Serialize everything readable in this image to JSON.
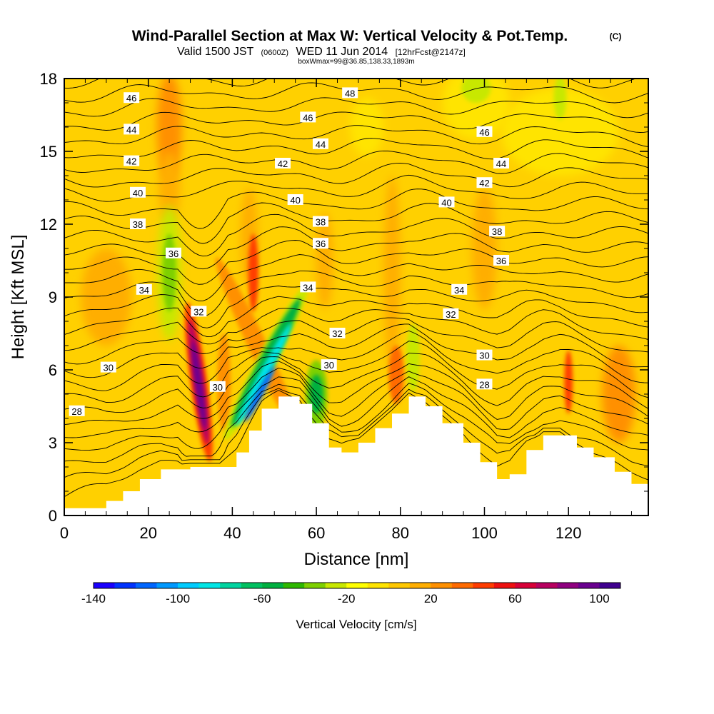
{
  "chart_data": {
    "type": "heatmap",
    "title": "Wind-Parallel Section at Max W: Vertical Velocity & Pot.Temp.",
    "title_mark": "(C)",
    "subtitle_parts": [
      "Valid 1500 JST",
      "(0600Z)",
      "WED 11 Jun 2014",
      "[12hrFcst@2147z]"
    ],
    "subtitle2": "boxWmax=99@36.85,138.33,1893m",
    "xlabel": "Distance [nm]",
    "ylabel": "Height [Kft MSL]",
    "xlim": [
      0,
      139
    ],
    "ylim": [
      0,
      18
    ],
    "xticks": [
      "0",
      "20",
      "40",
      "60",
      "80",
      "100",
      "120"
    ],
    "yticks": [
      "0",
      "3",
      "6",
      "9",
      "12",
      "15",
      "18"
    ],
    "colorbar": {
      "label": "Vertical Velocity [cm/s]",
      "range": [
        -140,
        110
      ],
      "step": 10,
      "tick_labels": [
        "-140",
        "-100",
        "-60",
        "-20",
        "20",
        "60",
        "100"
      ],
      "colors": [
        "#1a00ff",
        "#0033ff",
        "#0066ff",
        "#0099ff",
        "#00ccff",
        "#00e6e6",
        "#00d4a0",
        "#00c060",
        "#00b040",
        "#2eb800",
        "#7ed000",
        "#c8e800",
        "#ffff00",
        "#ffe400",
        "#ffc800",
        "#ffae00",
        "#ff9000",
        "#ff6a00",
        "#ff3c00",
        "#ee1010",
        "#d80038",
        "#b80060",
        "#900080",
        "#6a0090",
        "#400090"
      ]
    },
    "terrain_kft": [
      [
        0,
        0.3
      ],
      [
        10,
        0.6
      ],
      [
        14,
        1.0
      ],
      [
        18,
        1.5
      ],
      [
        23,
        1.9
      ],
      [
        30,
        2.0
      ],
      [
        37,
        2.0
      ],
      [
        41,
        2.6
      ],
      [
        44,
        3.5
      ],
      [
        47,
        4.4
      ],
      [
        51,
        4.9
      ],
      [
        56,
        4.6
      ],
      [
        59,
        3.8
      ],
      [
        63,
        2.8
      ],
      [
        66,
        2.6
      ],
      [
        70,
        3.0
      ],
      [
        74,
        3.6
      ],
      [
        78,
        4.2
      ],
      [
        82,
        4.9
      ],
      [
        86,
        4.5
      ],
      [
        90,
        3.8
      ],
      [
        95,
        3.0
      ],
      [
        99,
        2.2
      ],
      [
        103,
        1.5
      ],
      [
        106,
        1.7
      ],
      [
        110,
        2.7
      ],
      [
        114,
        3.3
      ],
      [
        118,
        3.3
      ],
      [
        122,
        2.8
      ],
      [
        126,
        2.4
      ],
      [
        131,
        1.8
      ],
      [
        135,
        1.3
      ],
      [
        139,
        1.0
      ]
    ],
    "theta_contour_labels": [
      {
        "text": "46",
        "x": 16,
        "y": 17.2
      },
      {
        "text": "44",
        "x": 16,
        "y": 15.9
      },
      {
        "text": "42",
        "x": 16,
        "y": 14.6
      },
      {
        "text": "40",
        "x": 17.5,
        "y": 13.3
      },
      {
        "text": "38",
        "x": 17.5,
        "y": 12.0
      },
      {
        "text": "36",
        "x": 26,
        "y": 10.8
      },
      {
        "text": "34",
        "x": 19,
        "y": 9.3
      },
      {
        "text": "32",
        "x": 32,
        "y": 8.4
      },
      {
        "text": "30",
        "x": 10.5,
        "y": 6.1
      },
      {
        "text": "28",
        "x": 3,
        "y": 4.3
      },
      {
        "text": "30",
        "x": 36.5,
        "y": 5.3
      },
      {
        "text": "48",
        "x": 68,
        "y": 17.4
      },
      {
        "text": "46",
        "x": 58,
        "y": 16.4
      },
      {
        "text": "44",
        "x": 61,
        "y": 15.3
      },
      {
        "text": "42",
        "x": 52,
        "y": 14.5
      },
      {
        "text": "40",
        "x": 55,
        "y": 13.0
      },
      {
        "text": "38",
        "x": 61,
        "y": 12.1
      },
      {
        "text": "36",
        "x": 61,
        "y": 11.2
      },
      {
        "text": "34",
        "x": 58,
        "y": 9.4
      },
      {
        "text": "32",
        "x": 65,
        "y": 7.5
      },
      {
        "text": "30",
        "x": 63,
        "y": 6.2
      },
      {
        "text": "46",
        "x": 100,
        "y": 15.8
      },
      {
        "text": "44",
        "x": 104,
        "y": 14.5
      },
      {
        "text": "42",
        "x": 100,
        "y": 13.7
      },
      {
        "text": "40",
        "x": 91,
        "y": 12.9
      },
      {
        "text": "38",
        "x": 103,
        "y": 11.7
      },
      {
        "text": "36",
        "x": 104,
        "y": 10.5
      },
      {
        "text": "34",
        "x": 94,
        "y": 9.3
      },
      {
        "text": "32",
        "x": 92,
        "y": 8.3
      },
      {
        "text": "30",
        "x": 100,
        "y": 6.6
      },
      {
        "text": "28",
        "x": 100,
        "y": 5.4
      }
    ]
  }
}
